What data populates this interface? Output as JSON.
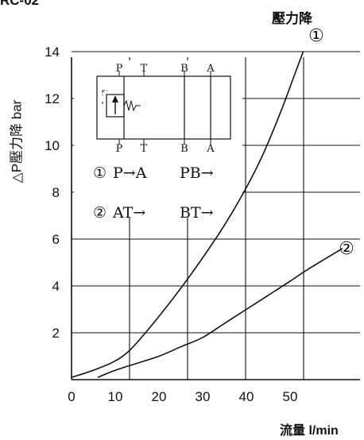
{
  "header": {
    "left_text": "RC-02",
    "right_text": "壓力降"
  },
  "chart_data": {
    "type": "line",
    "title": "壓力降",
    "xlabel": "流量 l/min",
    "ylabel": "△P壓力降 bar",
    "xlim": [
      0,
      62
    ],
    "ylim": [
      0,
      14
    ],
    "x_ticks": [
      0,
      10,
      20,
      30,
      40,
      50
    ],
    "y_ticks": [
      2,
      4,
      6,
      8,
      10,
      12,
      14
    ],
    "grid": true,
    "series": [
      {
        "name": "①",
        "points": [
          [
            0,
            0.1
          ],
          [
            5,
            0.4
          ],
          [
            10,
            0.8
          ],
          [
            13,
            1.2
          ],
          [
            16,
            1.8
          ],
          [
            20,
            2.7
          ],
          [
            25,
            3.9
          ],
          [
            30,
            5.2
          ],
          [
            35,
            6.6
          ],
          [
            40,
            8.2
          ],
          [
            44,
            9.7
          ],
          [
            48,
            11.5
          ],
          [
            51,
            13.0
          ],
          [
            53,
            14.0
          ]
        ]
      },
      {
        "name": "②",
        "points": [
          [
            6,
            0.1
          ],
          [
            10,
            0.4
          ],
          [
            15,
            0.7
          ],
          [
            20,
            1.0
          ],
          [
            25,
            1.4
          ],
          [
            30,
            1.8
          ],
          [
            35,
            2.4
          ],
          [
            40,
            3.0
          ],
          [
            45,
            3.6
          ],
          [
            50,
            4.2
          ],
          [
            54,
            4.7
          ],
          [
            62,
            5.6
          ]
        ]
      }
    ],
    "symbol": {
      "ports_top": [
        "P",
        "T",
        "B",
        "A"
      ],
      "ports_bottom": [
        "P",
        "T",
        "B",
        "A"
      ]
    },
    "legend": [
      {
        "marker": "①",
        "flow_1": "P→A",
        "flow_2": "PB→"
      },
      {
        "marker": "②",
        "flow_1": "AT→",
        "flow_2": "BT→"
      }
    ]
  }
}
